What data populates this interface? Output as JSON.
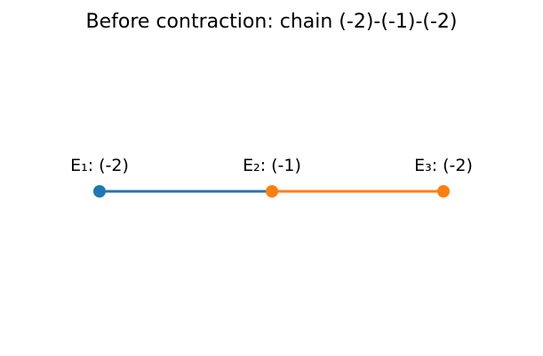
{
  "title": "Before contraction: chain (-2)-(-1)-(-2)",
  "nodes": [
    {
      "id": "E1",
      "label": "E₁: (-2)",
      "color": "#1f77b4"
    },
    {
      "id": "E2",
      "label": "E₂: (-1)",
      "color": "#ff7f0e"
    },
    {
      "id": "E3",
      "label": "E₃: (-2)",
      "color": "#ff7f0e"
    }
  ],
  "edges": [
    {
      "from": 0,
      "to": 1,
      "color": "#1f77b4"
    },
    {
      "from": 1,
      "to": 2,
      "color": "#ff7f0e"
    }
  ]
}
